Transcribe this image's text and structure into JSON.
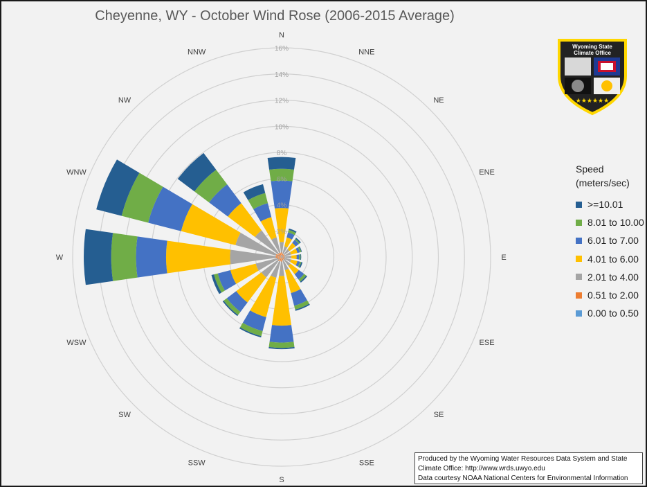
{
  "logo": {
    "line1": "Wyoming State",
    "line2": "Climate Office"
  },
  "credits": [
    "Produced by the Wyoming Water Resources Data System and State",
    "Climate Office: http://www.wrds.uwyo.edu",
    "Data courtesy NOAA National Centers for Environmental Information"
  ],
  "chart_data": {
    "type": "stacked-radar",
    "title": "Cheyenne, WY - October Wind Rose (2006-2015 Average)",
    "legend_title": [
      "Speed",
      "(meters/sec)"
    ],
    "legend_placement": "right",
    "radial_unit": "%",
    "rlim": [
      0,
      16
    ],
    "radial_ticks": [
      "0%",
      "2%",
      "4%",
      "6%",
      "8%",
      "10%",
      "12%",
      "14%",
      "16%"
    ],
    "grid": true,
    "directions": [
      "N",
      "NNE",
      "NE",
      "ENE",
      "E",
      "ESE",
      "SE",
      "SSE",
      "S",
      "SSW",
      "SW",
      "WSW",
      "W",
      "WNW",
      "NW",
      "NNW"
    ],
    "series": [
      {
        "name": "0.00 to 0.50",
        "color": "#5b9bd5",
        "values": [
          0.05,
          0.05,
          0.05,
          0.05,
          0.05,
          0.05,
          0.05,
          0.05,
          0.05,
          0.05,
          0.05,
          0.05,
          0.05,
          0.05,
          0.05,
          0.05
        ]
      },
      {
        "name": "0.51 to 2.00",
        "color": "#ed7d31",
        "values": [
          0.3,
          0.2,
          0.2,
          0.2,
          0.2,
          0.2,
          0.2,
          0.2,
          0.3,
          0.3,
          0.3,
          0.3,
          0.4,
          0.4,
          0.3,
          0.3
        ]
      },
      {
        "name": "2.01 to 4.00",
        "color": "#a5a5a5",
        "values": [
          0.8,
          0.6,
          0.5,
          0.5,
          0.5,
          0.5,
          0.6,
          0.8,
          1.1,
          1.3,
          1.6,
          1.7,
          3.5,
          3.2,
          2.2,
          1.2
        ]
      },
      {
        "name": "4.01 to 6.00",
        "color": "#ffc000",
        "values": [
          2.6,
          0.7,
          0.6,
          0.5,
          0.4,
          0.5,
          0.8,
          1.8,
          3.8,
          3.1,
          2.4,
          2.0,
          4.9,
          4.3,
          2.6,
          1.6
        ]
      },
      {
        "name": "6.01 to 7.00",
        "color": "#4472c4",
        "values": [
          2.1,
          0.4,
          0.3,
          0.2,
          0.2,
          0.2,
          0.5,
          1.0,
          1.3,
          1.1,
          0.9,
          1.0,
          2.3,
          2.6,
          1.8,
          1.1
        ]
      },
      {
        "name": "8.01 to 10.00",
        "color": "#70ad47",
        "values": [
          0.9,
          0.2,
          0.1,
          0.1,
          0.1,
          0.1,
          0.2,
          0.3,
          0.4,
          0.4,
          0.3,
          0.3,
          1.9,
          2.1,
          1.4,
          0.8
        ]
      },
      {
        "name": ">=10.01",
        "color": "#255e91",
        "values": [
          0.9,
          0.1,
          0.1,
          0.05,
          0.05,
          0.1,
          0.1,
          0.1,
          0.1,
          0.1,
          0.1,
          0.2,
          2.1,
          2.0,
          1.6,
          0.7
        ]
      }
    ]
  }
}
